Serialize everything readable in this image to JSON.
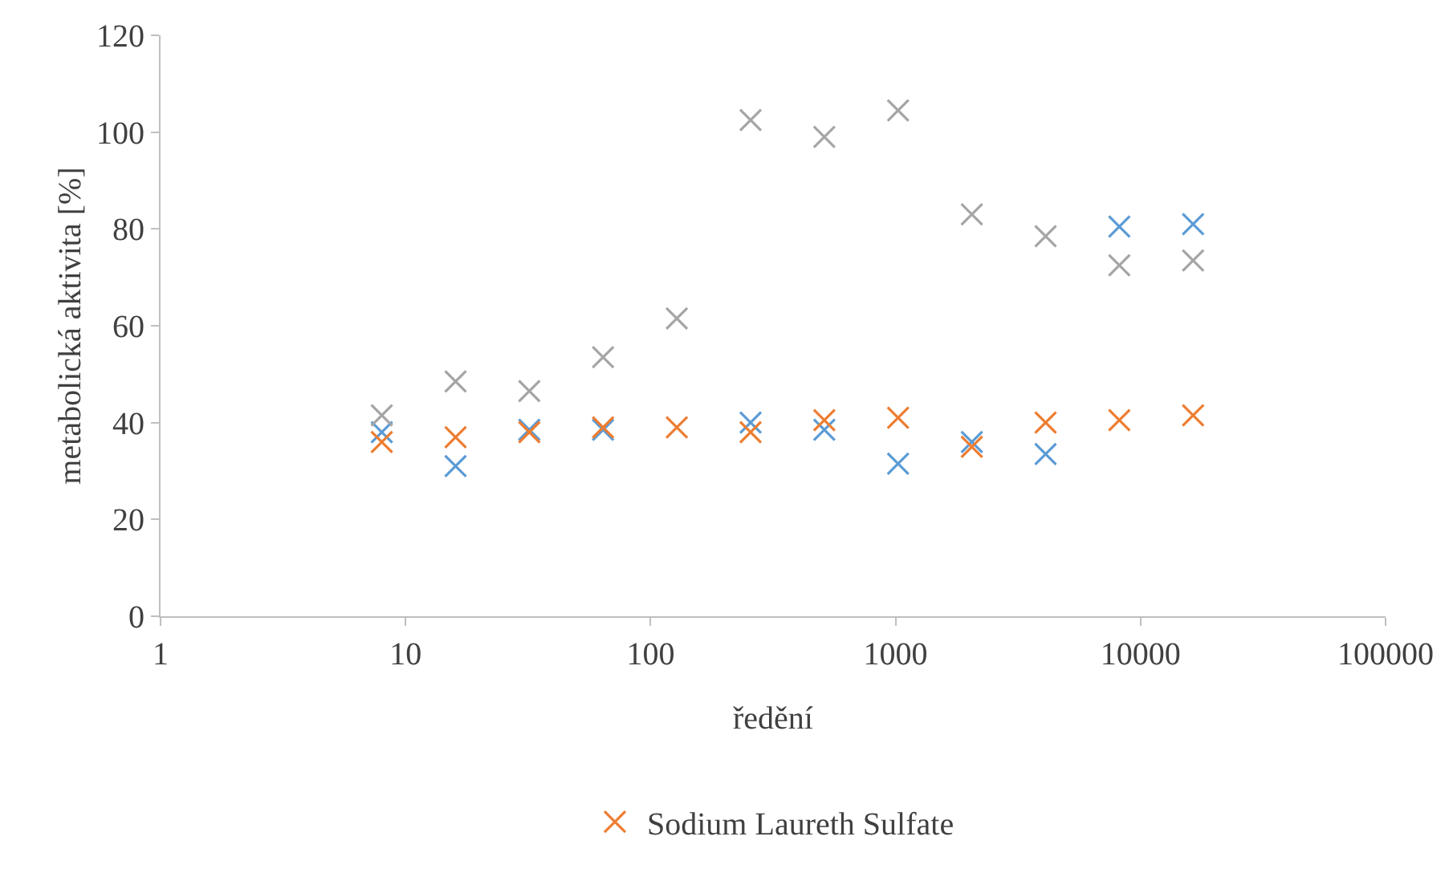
{
  "chart_data": {
    "type": "scatter",
    "xlabel": "ředění",
    "ylabel": "metabolická aktivita [%]",
    "log": "x",
    "marker": "cross",
    "legend": "bottom",
    "grid": false,
    "x": [
      8,
      16,
      32,
      64,
      128,
      256,
      512,
      1024,
      2048,
      4096,
      8192,
      16384
    ],
    "xlim": [
      1,
      100000
    ],
    "xticks": [
      1,
      10,
      100,
      1000,
      10000,
      100000
    ],
    "ylim": [
      0,
      120
    ],
    "yticks": [
      0,
      20,
      40,
      60,
      80,
      100,
      120
    ],
    "series": [
      {
        "color": "#5b9bd5",
        "values": [
          38,
          31,
          38.5,
          38.5,
          null,
          40,
          38.5,
          31.5,
          36,
          33.5,
          80.5,
          81
        ]
      },
      {
        "color": "#a5a5a5",
        "values": [
          41.5,
          48.5,
          46.5,
          53.5,
          61.5,
          102.5,
          99,
          104.5,
          83,
          78.5,
          72.5,
          73.5
        ]
      },
      {
        "name": "Sodium Laureth Sulfate",
        "color": "#ed7d31",
        "values": [
          36,
          37,
          38,
          39,
          39,
          38,
          40.5,
          41,
          35,
          40,
          40.5,
          41.5
        ]
      }
    ]
  }
}
